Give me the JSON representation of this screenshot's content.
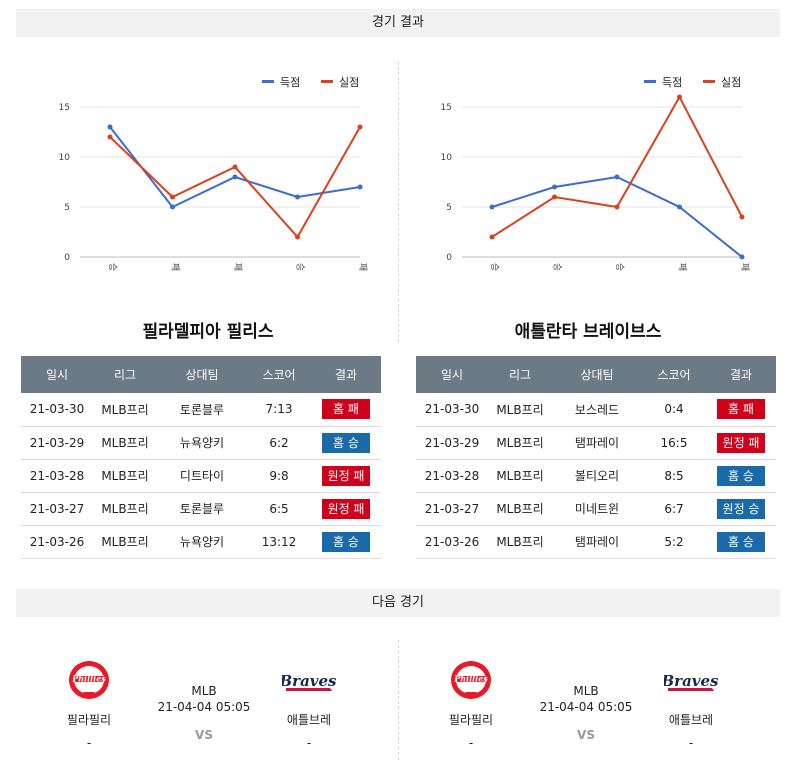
{
  "header": {
    "results_title": "경기 결과",
    "next_title": "다음 경기"
  },
  "legend": {
    "scored": "득점",
    "conceded": "실점"
  },
  "colors": {
    "scored": "#3c6bd1",
    "conceded": "#d8431d",
    "win": "#1a6aa9",
    "loss": "#d0021b",
    "table_header": "#6c7a86"
  },
  "chart_data": [
    {
      "type": "line",
      "categories": [
        "승",
        "패",
        "패",
        "승",
        "패"
      ],
      "series": [
        {
          "name": "득점",
          "values": [
            13,
            5,
            8,
            6,
            7
          ]
        },
        {
          "name": "실점",
          "values": [
            12,
            6,
            9,
            2,
            13
          ]
        }
      ],
      "yticks": [
        0,
        5,
        10,
        15
      ],
      "ylim": [
        0,
        15
      ],
      "legend_position": "top-right",
      "grid": true
    },
    {
      "type": "line",
      "categories": [
        "승",
        "승",
        "승",
        "패",
        "패"
      ],
      "series": [
        {
          "name": "득점",
          "values": [
            5,
            7,
            8,
            5,
            0
          ]
        },
        {
          "name": "실점",
          "values": [
            2,
            6,
            5,
            16,
            4
          ]
        }
      ],
      "yticks": [
        0,
        5,
        10,
        15
      ],
      "ylim": [
        0,
        15
      ],
      "legend_position": "top-right",
      "grid": true
    }
  ],
  "teams": [
    {
      "name": "필라델피아 필리스",
      "columns": [
        "일시",
        "리그",
        "상대팀",
        "스코어",
        "결과"
      ],
      "rows": [
        {
          "date": "21-03-30",
          "league": "MLB프리",
          "opponent": "토론블루",
          "score": "7:13",
          "result": "홈 패",
          "type": "loss"
        },
        {
          "date": "21-03-29",
          "league": "MLB프리",
          "opponent": "뉴욕양키",
          "score": "6:2",
          "result": "홈 승",
          "type": "win"
        },
        {
          "date": "21-03-28",
          "league": "MLB프리",
          "opponent": "디트타이",
          "score": "9:8",
          "result": "원정 패",
          "type": "loss"
        },
        {
          "date": "21-03-27",
          "league": "MLB프리",
          "opponent": "토론블루",
          "score": "6:5",
          "result": "원정 패",
          "type": "loss"
        },
        {
          "date": "21-03-26",
          "league": "MLB프리",
          "opponent": "뉴욕양키",
          "score": "13:12",
          "result": "홈 승",
          "type": "win"
        }
      ]
    },
    {
      "name": "애틀란타 브레이브스",
      "columns": [
        "일시",
        "리그",
        "상대팀",
        "스코어",
        "결과"
      ],
      "rows": [
        {
          "date": "21-03-30",
          "league": "MLB프리",
          "opponent": "보스레드",
          "score": "0:4",
          "result": "홈 패",
          "type": "loss"
        },
        {
          "date": "21-03-29",
          "league": "MLB프리",
          "opponent": "탬파레이",
          "score": "16:5",
          "result": "원정 패",
          "type": "loss"
        },
        {
          "date": "21-03-28",
          "league": "MLB프리",
          "opponent": "볼티오리",
          "score": "8:5",
          "result": "홈 승",
          "type": "win"
        },
        {
          "date": "21-03-27",
          "league": "MLB프리",
          "opponent": "미네트윈",
          "score": "6:7",
          "result": "원정 승",
          "type": "win"
        },
        {
          "date": "21-03-26",
          "league": "MLB프리",
          "opponent": "탬파레이",
          "score": "5:2",
          "result": "홈 승",
          "type": "win"
        }
      ]
    }
  ],
  "next_games": [
    {
      "home": "필라필리",
      "home_extra": "-",
      "away": "애틀브레",
      "away_extra": "-",
      "league": "MLB",
      "datetime": "21-04-04 05:05",
      "vs": "VS",
      "home_logo": "phillies-logo",
      "away_logo": "braves-logo"
    },
    {
      "home": "필라필리",
      "home_extra": "-",
      "away": "애틀브레",
      "away_extra": "-",
      "league": "MLB",
      "datetime": "21-04-04 05:05",
      "vs": "VS",
      "home_logo": "phillies-logo",
      "away_logo": "braves-logo"
    }
  ]
}
